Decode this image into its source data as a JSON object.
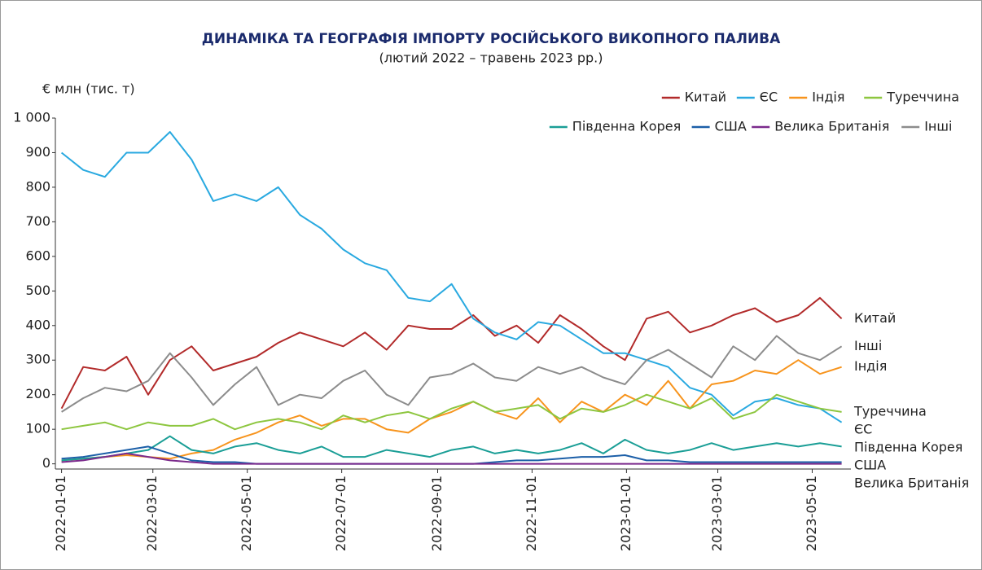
{
  "chart_data": {
    "type": "line",
    "title": "ДИНАМІКА ТА ГЕОГРАФІЯ ІМПОРТУ РОСІЙСЬКОГО ВИКОПНОГО ПАЛИВА",
    "subtitle": "(лютий 2022 – травень 2023 рр.)",
    "y_label": "€ млн (тис. т)",
    "x": [
      "2022-01-01",
      "2022-01-15",
      "2022-01-29",
      "2022-02-12",
      "2022-02-26",
      "2022-03-12",
      "2022-03-26",
      "2022-04-09",
      "2022-04-23",
      "2022-05-07",
      "2022-05-21",
      "2022-06-04",
      "2022-06-18",
      "2022-07-02",
      "2022-07-16",
      "2022-07-30",
      "2022-08-13",
      "2022-08-27",
      "2022-09-10",
      "2022-09-24",
      "2022-10-08",
      "2022-10-22",
      "2022-11-05",
      "2022-11-19",
      "2022-12-03",
      "2022-12-17",
      "2022-12-31",
      "2023-01-14",
      "2023-01-28",
      "2023-02-11",
      "2023-02-25",
      "2023-03-11",
      "2023-03-25",
      "2023-04-08",
      "2023-04-22",
      "2023-05-06",
      "2023-05-20"
    ],
    "xlim": [
      "2021-12-28",
      "2023-05-26"
    ],
    "xticks": [
      "2022-01-01",
      "2022-03-01",
      "2022-05-01",
      "2022-07-01",
      "2022-09-01",
      "2022-11-01",
      "2023-01-01",
      "2023-03-01",
      "2023-05-01"
    ],
    "ylim": [
      -15,
      1000
    ],
    "yticks": [
      0,
      100,
      200,
      300,
      400,
      500,
      600,
      700,
      800,
      900,
      {
        "value": 1000,
        "label": "1 000"
      }
    ],
    "legend": "top-right",
    "series": [
      {
        "name": "Китай",
        "color": "#b22a2a",
        "values": [
          160,
          280,
          270,
          310,
          200,
          300,
          340,
          270,
          290,
          310,
          350,
          380,
          360,
          340,
          380,
          330,
          400,
          390,
          390,
          430,
          370,
          400,
          350,
          430,
          390,
          340,
          300,
          420,
          440,
          380,
          400,
          430,
          450,
          410,
          430,
          480,
          420
        ]
      },
      {
        "name": "ЄС",
        "color": "#29a9e0",
        "values": [
          900,
          850,
          830,
          900,
          900,
          960,
          880,
          760,
          780,
          760,
          800,
          720,
          680,
          620,
          580,
          560,
          480,
          470,
          520,
          420,
          380,
          360,
          410,
          400,
          360,
          320,
          320,
          300,
          280,
          220,
          200,
          140,
          180,
          190,
          170,
          160,
          120
        ]
      },
      {
        "name": "Індія",
        "color": "#f7941d",
        "values": [
          10,
          15,
          20,
          25,
          20,
          15,
          30,
          40,
          70,
          90,
          120,
          140,
          110,
          130,
          130,
          100,
          90,
          130,
          150,
          180,
          150,
          130,
          190,
          120,
          180,
          150,
          200,
          170,
          240,
          160,
          230,
          240,
          270,
          260,
          300,
          260,
          280
        ]
      },
      {
        "name": "Туреччина",
        "color": "#8dc63f",
        "values": [
          100,
          110,
          120,
          100,
          120,
          110,
          110,
          130,
          100,
          120,
          130,
          120,
          100,
          140,
          120,
          140,
          150,
          130,
          160,
          180,
          150,
          160,
          170,
          130,
          160,
          150,
          170,
          200,
          180,
          160,
          190,
          130,
          150,
          200,
          180,
          160,
          150
        ]
      },
      {
        "name": "Південна Корея",
        "color": "#1a9e96",
        "values": [
          10,
          15,
          20,
          30,
          40,
          80,
          40,
          30,
          50,
          60,
          40,
          30,
          50,
          20,
          20,
          40,
          30,
          20,
          40,
          50,
          30,
          40,
          30,
          40,
          60,
          30,
          70,
          40,
          30,
          40,
          60,
          40,
          50,
          60,
          50,
          60,
          50
        ]
      },
      {
        "name": "США",
        "color": "#1c5fa8",
        "values": [
          15,
          20,
          30,
          40,
          50,
          30,
          10,
          5,
          5,
          0,
          0,
          0,
          0,
          0,
          0,
          0,
          0,
          0,
          0,
          0,
          5,
          10,
          10,
          15,
          20,
          20,
          25,
          10,
          10,
          5,
          5,
          5,
          5,
          5,
          5,
          5,
          5
        ]
      },
      {
        "name": "Велика Британія",
        "color": "#7b2a8c",
        "values": [
          5,
          10,
          20,
          30,
          20,
          10,
          5,
          0,
          0,
          0,
          0,
          0,
          0,
          0,
          0,
          0,
          0,
          0,
          0,
          0,
          0,
          0,
          0,
          0,
          0,
          0,
          0,
          0,
          0,
          0,
          0,
          0,
          0,
          0,
          0,
          0,
          0
        ]
      },
      {
        "name": "Інші",
        "color": "#8c8c8c",
        "values": [
          150,
          190,
          220,
          210,
          240,
          320,
          250,
          170,
          230,
          280,
          170,
          200,
          190,
          240,
          270,
          200,
          170,
          250,
          260,
          290,
          250,
          240,
          280,
          260,
          280,
          250,
          230,
          300,
          330,
          290,
          250,
          340,
          300,
          370,
          320,
          300,
          340
        ]
      }
    ]
  }
}
